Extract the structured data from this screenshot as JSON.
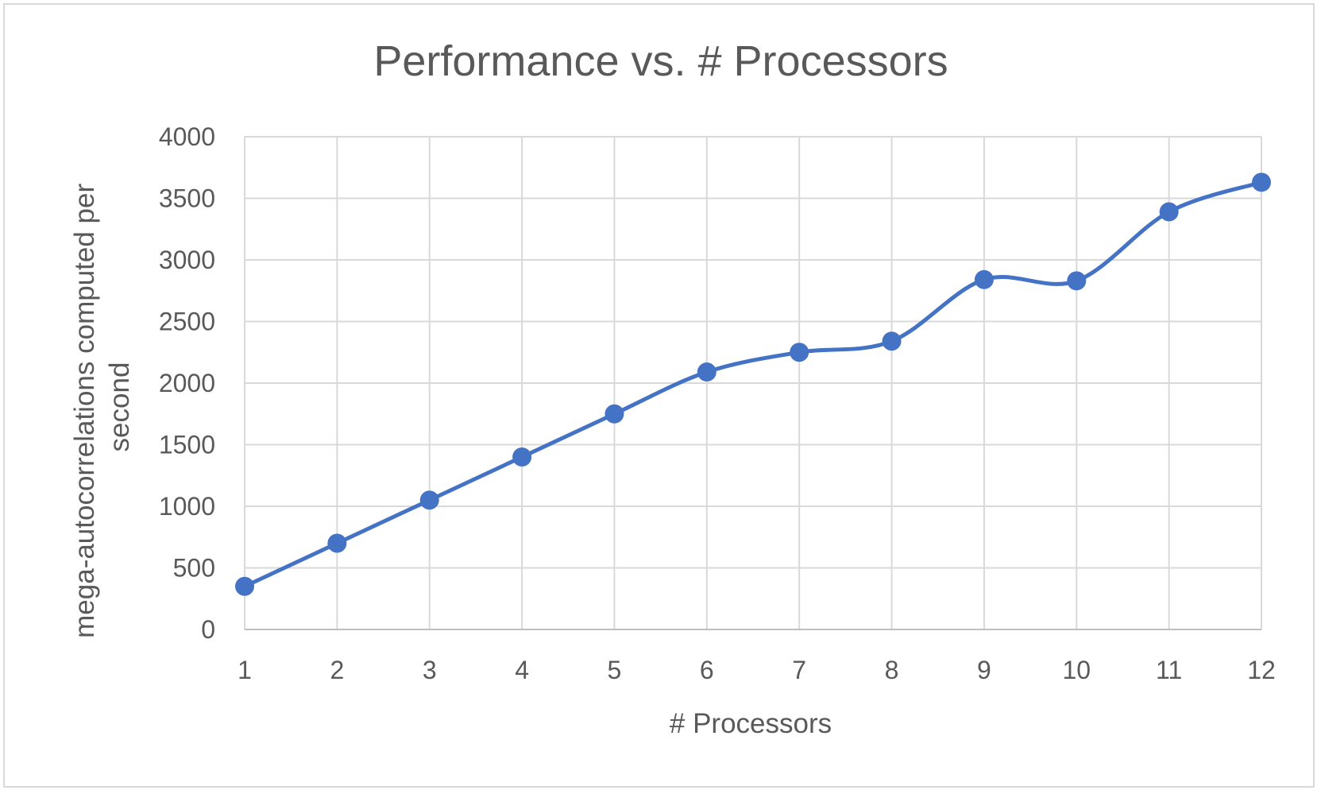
{
  "chart_data": {
    "type": "line",
    "title": "Performance vs. # Processors",
    "xlabel": "# Processors",
    "ylabel_lines": [
      "mega-autocorrelations computed per",
      "second"
    ],
    "x": [
      1,
      2,
      3,
      4,
      5,
      6,
      7,
      8,
      9,
      10,
      11,
      12
    ],
    "x_tick_labels": [
      "1",
      "2",
      "3",
      "4",
      "5",
      "6",
      "7",
      "8",
      "9",
      "10",
      "11",
      "12"
    ],
    "series": [
      {
        "values": [
          350,
          700,
          1050,
          1400,
          1750,
          2090,
          2250,
          2340,
          2840,
          2830,
          3390,
          3630
        ]
      }
    ],
    "ylim": [
      0,
      4000
    ],
    "y_ticks": [
      0,
      500,
      1000,
      1500,
      2000,
      2500,
      3000,
      3500,
      4000
    ],
    "y_tick_labels": [
      "0",
      "500",
      "1000",
      "1500",
      "2000",
      "2500",
      "3000",
      "3500",
      "4000"
    ],
    "grid": true,
    "smooth_line": true,
    "markers": true,
    "legend": "none",
    "colors": {
      "series": "#4472c4",
      "grid": "#d9d9d9",
      "text": "#595959",
      "border": "#d9d9d9"
    }
  }
}
